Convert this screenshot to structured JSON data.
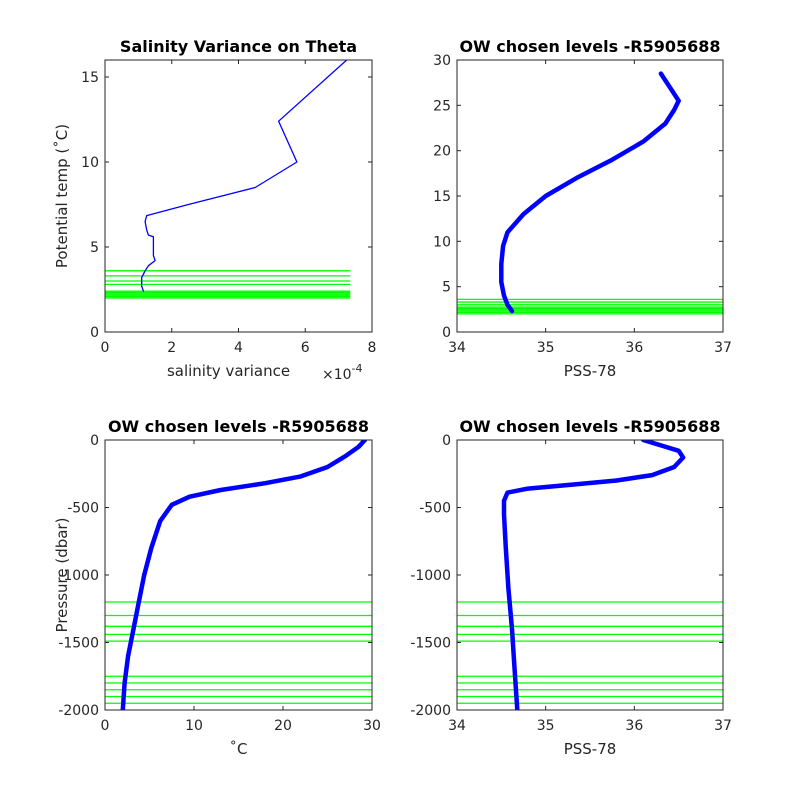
{
  "chart_data": [
    {
      "type": "line",
      "title": "Salinity Variance on Theta",
      "xlabel": "salinity variance",
      "x_exponent_label": "×10",
      "x_exponent_power": "-4",
      "ylabel": "Potential temp (˚C)",
      "xlim": [
        0,
        8
      ],
      "ylim": [
        0,
        16
      ],
      "xticks": [
        0,
        2,
        4,
        6,
        8
      ],
      "yticks": [
        0,
        5,
        10,
        15
      ],
      "series": [
        {
          "color": "#0000ff",
          "points": [
            [
              1.15,
              2.4
            ],
            [
              1.1,
              2.7
            ],
            [
              1.1,
              3.2
            ],
            [
              1.2,
              3.6
            ],
            [
              1.3,
              3.9
            ],
            [
              1.5,
              4.2
            ],
            [
              1.45,
              4.5
            ],
            [
              1.45,
              5.0
            ],
            [
              1.45,
              5.6
            ],
            [
              1.3,
              5.7
            ],
            [
              1.25,
              6.0
            ],
            [
              1.2,
              6.5
            ],
            [
              1.25,
              6.85
            ],
            [
              2.5,
              7.5
            ],
            [
              4.5,
              8.5
            ],
            [
              5.75,
              10.0
            ],
            [
              5.2,
              12.4
            ],
            [
              7.3,
              16.1
            ]
          ]
        }
      ],
      "hlines": {
        "color": "#00ff00",
        "values": [
          2.0,
          2.08,
          2.16,
          2.24,
          2.32,
          2.4,
          2.8,
          3.0,
          3.3,
          3.6
        ],
        "xrange": [
          0,
          7.35
        ]
      }
    },
    {
      "type": "line",
      "title": "OW chosen levels -R5905688",
      "xlabel": "PSS-78",
      "ylabel": "",
      "xlim": [
        34,
        37
      ],
      "ylim": [
        0,
        30
      ],
      "xticks": [
        34,
        35,
        36,
        37
      ],
      "yticks": [
        0,
        5,
        10,
        15,
        20,
        25,
        30
      ],
      "series": [
        {
          "color": "#0000ff",
          "points": [
            [
              34.62,
              2.3
            ],
            [
              34.57,
              3.0
            ],
            [
              34.53,
              4.0
            ],
            [
              34.5,
              5.5
            ],
            [
              34.5,
              7.5
            ],
            [
              34.52,
              9.5
            ],
            [
              34.57,
              11.0
            ],
            [
              34.75,
              13.0
            ],
            [
              35.0,
              15.0
            ],
            [
              35.35,
              17.0
            ],
            [
              35.75,
              19.0
            ],
            [
              36.1,
              21.0
            ],
            [
              36.35,
              23.0
            ],
            [
              36.45,
              24.5
            ],
            [
              36.5,
              25.5
            ],
            [
              36.4,
              27.0
            ],
            [
              36.3,
              28.5
            ]
          ]
        }
      ],
      "hlines": {
        "color": "#00ff00",
        "values": [
          2.0,
          2.15,
          2.3,
          2.45,
          2.6,
          2.75,
          3.0,
          3.3,
          3.6
        ],
        "xrange": [
          34,
          37
        ]
      }
    },
    {
      "type": "line",
      "title": "OW chosen levels -R5905688",
      "xlabel": "˚C",
      "ylabel": "Pressure (dbar)",
      "xlim": [
        0,
        30
      ],
      "ylim": [
        -2000,
        0
      ],
      "xticks": [
        0,
        10,
        20,
        30
      ],
      "yticks": [
        -2000,
        -1500,
        -1000,
        -500,
        0
      ],
      "series": [
        {
          "color": "#0000ff",
          "points": [
            [
              2.0,
              -2000
            ],
            [
              2.2,
              -1800
            ],
            [
              2.6,
              -1600
            ],
            [
              3.2,
              -1400
            ],
            [
              3.8,
              -1200
            ],
            [
              4.4,
              -1000
            ],
            [
              5.2,
              -800
            ],
            [
              6.2,
              -600
            ],
            [
              7.5,
              -480
            ],
            [
              9.5,
              -420
            ],
            [
              13.0,
              -370
            ],
            [
              18.0,
              -320
            ],
            [
              22.0,
              -270
            ],
            [
              25.0,
              -200
            ],
            [
              27.0,
              -120
            ],
            [
              28.5,
              -50
            ],
            [
              29.2,
              0
            ]
          ]
        }
      ],
      "hlines": {
        "color": "#00ff00",
        "values": [
          -1200,
          -1300,
          -1380,
          -1440,
          -1490,
          -1750,
          -1800,
          -1850,
          -1900,
          -1950
        ],
        "xrange": [
          0,
          30
        ]
      }
    },
    {
      "type": "line",
      "title": "OW chosen levels -R5905688",
      "xlabel": "PSS-78",
      "ylabel": "",
      "xlim": [
        34,
        37
      ],
      "ylim": [
        -2000,
        0
      ],
      "xticks": [
        34,
        35,
        36,
        37
      ],
      "yticks": [
        -2000,
        -1500,
        -1000,
        -500,
        0
      ],
      "series": [
        {
          "color": "#0000ff",
          "points": [
            [
              34.68,
              -2000
            ],
            [
              34.65,
              -1700
            ],
            [
              34.62,
              -1400
            ],
            [
              34.58,
              -1100
            ],
            [
              34.55,
              -800
            ],
            [
              34.53,
              -550
            ],
            [
              34.53,
              -450
            ],
            [
              34.57,
              -390
            ],
            [
              34.8,
              -360
            ],
            [
              35.3,
              -330
            ],
            [
              35.8,
              -300
            ],
            [
              36.2,
              -260
            ],
            [
              36.45,
              -200
            ],
            [
              36.55,
              -130
            ],
            [
              36.5,
              -80
            ],
            [
              36.3,
              -40
            ],
            [
              36.1,
              0
            ]
          ]
        }
      ],
      "hlines": {
        "color": "#00ff00",
        "values": [
          -1200,
          -1300,
          -1380,
          -1440,
          -1490,
          -1750,
          -1800,
          -1850,
          -1900,
          -1950
        ],
        "xrange": [
          34,
          37
        ]
      }
    }
  ]
}
